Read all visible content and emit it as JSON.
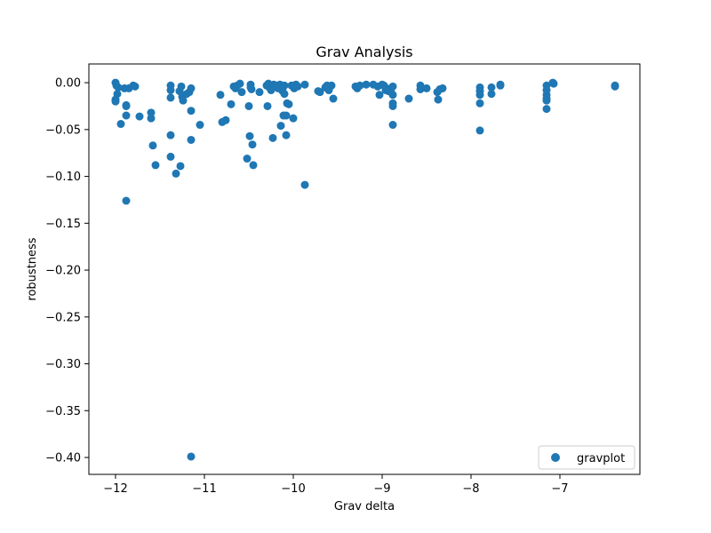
{
  "chart_data": {
    "type": "scatter",
    "title": "Grav Analysis",
    "xlabel": "Grav delta",
    "ylabel": "robustness",
    "xlim": [
      -12.3,
      -6.1
    ],
    "ylim": [
      -0.418,
      0.02
    ],
    "xticks": [
      -12,
      -11,
      -10,
      -9,
      -8,
      -7
    ],
    "xtick_labels": [
      "−12",
      "−11",
      "−10",
      "−9",
      "−8",
      "−7"
    ],
    "yticks": [
      0.0,
      -0.05,
      -0.1,
      -0.15,
      -0.2,
      -0.25,
      -0.3,
      -0.35,
      -0.4
    ],
    "ytick_labels": [
      "0.00",
      "−0.05",
      "−0.10",
      "−0.15",
      "−0.20",
      "−0.25",
      "−0.30",
      "−0.35",
      "−0.40"
    ],
    "grid": false,
    "legend": {
      "position": "bottom-right",
      "entries": [
        "gravplot"
      ]
    },
    "colors": {
      "series": "#1f77b4"
    },
    "series": [
      {
        "name": "gravplot",
        "points": [
          [
            -12.0,
            0.0
          ],
          [
            -11.99,
            -0.003
          ],
          [
            -12.0,
            -0.018
          ],
          [
            -12.0,
            -0.02
          ],
          [
            -11.98,
            -0.012
          ],
          [
            -11.97,
            -0.005
          ],
          [
            -11.94,
            -0.044
          ],
          [
            -11.9,
            -0.006
          ],
          [
            -11.88,
            -0.025
          ],
          [
            -11.88,
            -0.024
          ],
          [
            -11.88,
            -0.035
          ],
          [
            -11.88,
            -0.126
          ],
          [
            -11.85,
            -0.006
          ],
          [
            -11.8,
            -0.003
          ],
          [
            -11.78,
            -0.004
          ],
          [
            -11.73,
            -0.036
          ],
          [
            -11.6,
            -0.038
          ],
          [
            -11.6,
            -0.032
          ],
          [
            -11.58,
            -0.067
          ],
          [
            -11.55,
            -0.088
          ],
          [
            -11.38,
            -0.003
          ],
          [
            -11.38,
            -0.008
          ],
          [
            -11.38,
            -0.016
          ],
          [
            -11.38,
            -0.056
          ],
          [
            -11.38,
            -0.079
          ],
          [
            -11.32,
            -0.097
          ],
          [
            -11.28,
            -0.009
          ],
          [
            -11.27,
            -0.089
          ],
          [
            -11.26,
            -0.004
          ],
          [
            -11.25,
            -0.015
          ],
          [
            -11.24,
            -0.019
          ],
          [
            -11.2,
            -0.012
          ],
          [
            -11.17,
            -0.01
          ],
          [
            -11.15,
            -0.006
          ],
          [
            -11.15,
            -0.03
          ],
          [
            -11.15,
            -0.061
          ],
          [
            -11.15,
            -0.399
          ],
          [
            -11.05,
            -0.045
          ],
          [
            -10.82,
            -0.013
          ],
          [
            -10.8,
            -0.042
          ],
          [
            -10.76,
            -0.04
          ],
          [
            -10.7,
            -0.023
          ],
          [
            -10.67,
            -0.004
          ],
          [
            -10.65,
            -0.006
          ],
          [
            -10.63,
            -0.003
          ],
          [
            -10.6,
            -0.001
          ],
          [
            -10.58,
            -0.01
          ],
          [
            -10.52,
            -0.081
          ],
          [
            -10.5,
            -0.025
          ],
          [
            -10.49,
            -0.057
          ],
          [
            -10.48,
            -0.002
          ],
          [
            -10.48,
            -0.005
          ],
          [
            -10.47,
            -0.007
          ],
          [
            -10.46,
            -0.066
          ],
          [
            -10.45,
            -0.088
          ],
          [
            -10.38,
            -0.01
          ],
          [
            -10.3,
            -0.003
          ],
          [
            -10.29,
            -0.025
          ],
          [
            -10.28,
            -0.001
          ],
          [
            -10.27,
            -0.005
          ],
          [
            -10.25,
            -0.008
          ],
          [
            -10.23,
            -0.059
          ],
          [
            -10.22,
            -0.002
          ],
          [
            -10.2,
            -0.003
          ],
          [
            -10.17,
            -0.006
          ],
          [
            -10.15,
            -0.002
          ],
          [
            -10.14,
            -0.046
          ],
          [
            -10.12,
            -0.009
          ],
          [
            -10.11,
            -0.035
          ],
          [
            -10.1,
            -0.003
          ],
          [
            -10.1,
            -0.012
          ],
          [
            -10.08,
            -0.035
          ],
          [
            -10.08,
            -0.056
          ],
          [
            -10.07,
            -0.022
          ],
          [
            -10.05,
            -0.023
          ],
          [
            -10.02,
            -0.003
          ],
          [
            -10.0,
            -0.038
          ],
          [
            -9.99,
            -0.006
          ],
          [
            -9.97,
            -0.002
          ],
          [
            -9.95,
            -0.004
          ],
          [
            -9.87,
            -0.109
          ],
          [
            -9.87,
            -0.002
          ],
          [
            -9.72,
            -0.009
          ],
          [
            -9.7,
            -0.01
          ],
          [
            -9.64,
            -0.005
          ],
          [
            -9.62,
            -0.003
          ],
          [
            -9.6,
            -0.008
          ],
          [
            -9.57,
            -0.003
          ],
          [
            -9.55,
            -0.017
          ],
          [
            -9.3,
            -0.004
          ],
          [
            -9.28,
            -0.006
          ],
          [
            -9.25,
            -0.003
          ],
          [
            -9.18,
            -0.002
          ],
          [
            -9.1,
            -0.002
          ],
          [
            -9.05,
            -0.004
          ],
          [
            -9.03,
            -0.013
          ],
          [
            -9.0,
            -0.002
          ],
          [
            -8.98,
            -0.003
          ],
          [
            -8.96,
            -0.008
          ],
          [
            -8.95,
            -0.006
          ],
          [
            -8.93,
            -0.009
          ],
          [
            -8.9,
            -0.01
          ],
          [
            -8.88,
            -0.004
          ],
          [
            -8.88,
            -0.013
          ],
          [
            -8.88,
            -0.022
          ],
          [
            -8.88,
            -0.025
          ],
          [
            -8.88,
            -0.045
          ],
          [
            -8.7,
            -0.017
          ],
          [
            -8.57,
            -0.003
          ],
          [
            -8.57,
            -0.007
          ],
          [
            -8.5,
            -0.006
          ],
          [
            -8.38,
            -0.01
          ],
          [
            -8.37,
            -0.018
          ],
          [
            -8.35,
            -0.007
          ],
          [
            -8.32,
            -0.006
          ],
          [
            -7.9,
            -0.005
          ],
          [
            -7.9,
            -0.009
          ],
          [
            -7.9,
            -0.013
          ],
          [
            -7.9,
            -0.022
          ],
          [
            -7.9,
            -0.051
          ],
          [
            -7.77,
            -0.005
          ],
          [
            -7.77,
            -0.012
          ],
          [
            -7.67,
            -0.002
          ],
          [
            -7.67,
            -0.003
          ],
          [
            -7.15,
            -0.003
          ],
          [
            -7.15,
            -0.008
          ],
          [
            -7.15,
            -0.013
          ],
          [
            -7.15,
            -0.017
          ],
          [
            -7.15,
            -0.019
          ],
          [
            -7.15,
            -0.028
          ],
          [
            -7.08,
            0.0
          ],
          [
            -7.07,
            -0.001
          ],
          [
            -6.38,
            -0.004
          ],
          [
            -6.38,
            -0.003
          ]
        ]
      }
    ]
  }
}
